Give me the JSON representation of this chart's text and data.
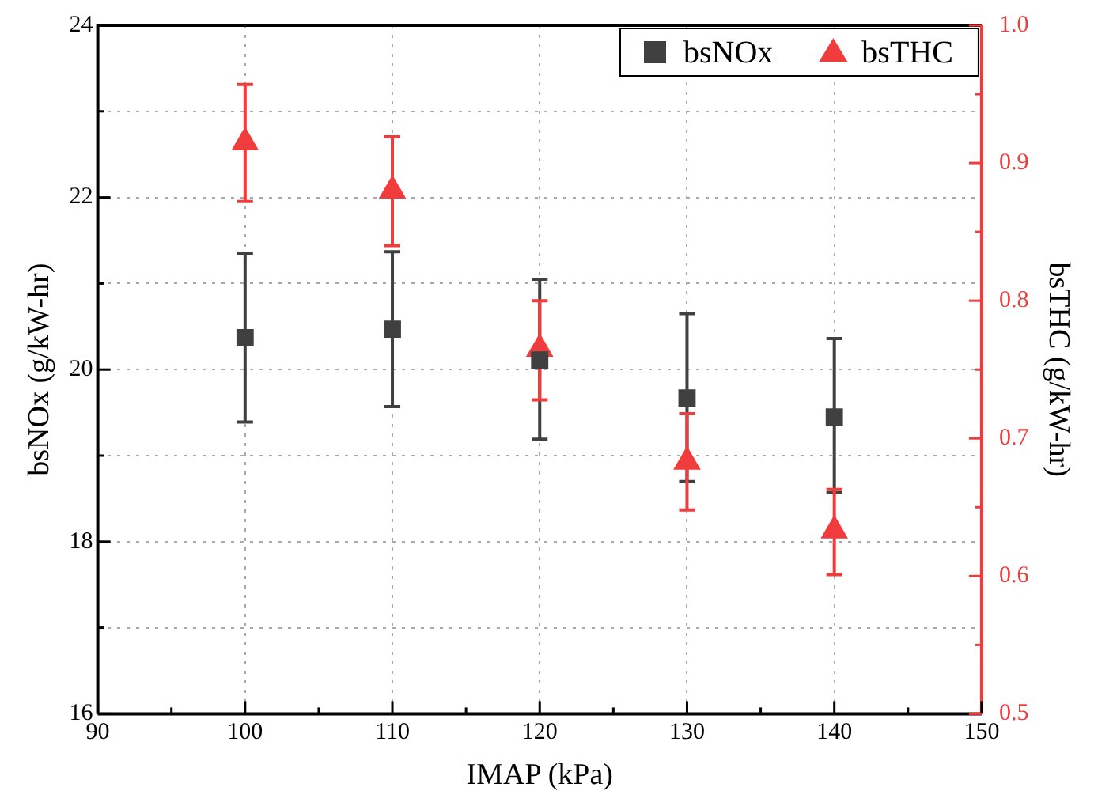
{
  "chart_data": {
    "type": "scatter",
    "xlabel": "IMAP (kPa)",
    "ylabel": "bsNOx (g/kW-hr)",
    "y2label": "bsTHC (g/kW-hr)",
    "x": [
      100,
      110,
      120,
      130,
      140
    ],
    "series": [
      {
        "name": "bsNOx",
        "color": "#404040",
        "marker": "square",
        "values": [
          20.37,
          20.47,
          20.11,
          19.67,
          19.45
        ],
        "errors": [
          [
            19.39,
            21.35
          ],
          [
            19.57,
            21.37
          ],
          [
            19.19,
            21.05
          ],
          [
            18.7,
            20.65
          ],
          [
            18.57,
            20.36
          ]
        ]
      },
      {
        "name": "bsTHC",
        "color": "#f03c3c",
        "marker": "triangle",
        "axis": "y2",
        "values": [
          0.915,
          0.88,
          0.765,
          0.683,
          0.633
        ],
        "errors": [
          [
            0.872,
            0.957
          ],
          [
            0.84,
            0.919
          ],
          [
            0.728,
            0.8
          ],
          [
            0.648,
            0.718
          ],
          [
            0.601,
            0.663
          ]
        ]
      }
    ],
    "xlim": [
      90,
      150
    ],
    "xticks": [
      90,
      {
        "value": 95,
        "label": null
      },
      100,
      {
        "value": 105,
        "label": null
      },
      110,
      {
        "value": 115,
        "label": null
      },
      120,
      {
        "value": 125,
        "label": null
      },
      130,
      {
        "value": 135,
        "label": null
      },
      140,
      {
        "value": 145,
        "label": null
      },
      150
    ],
    "ylim": [
      16,
      24
    ],
    "yticks": [
      16,
      {
        "value": 17,
        "label": null
      },
      18,
      {
        "value": 19,
        "label": null
      },
      20,
      {
        "value": 21,
        "label": null
      },
      22,
      {
        "value": 23,
        "label": null
      },
      24
    ],
    "y2lim": [
      0.5,
      1.0
    ],
    "y2ticks": [
      0.5,
      {
        "value": 0.55,
        "label": null
      },
      0.6,
      {
        "value": 0.65,
        "label": null
      },
      0.7,
      {
        "value": 0.75,
        "label": null
      },
      0.8,
      {
        "value": 0.85,
        "label": null
      },
      0.9,
      {
        "value": 0.95,
        "label": null
      },
      {
        "value": 1.0,
        "label": "1.0"
      }
    ],
    "grid": true,
    "legend": "top right"
  }
}
